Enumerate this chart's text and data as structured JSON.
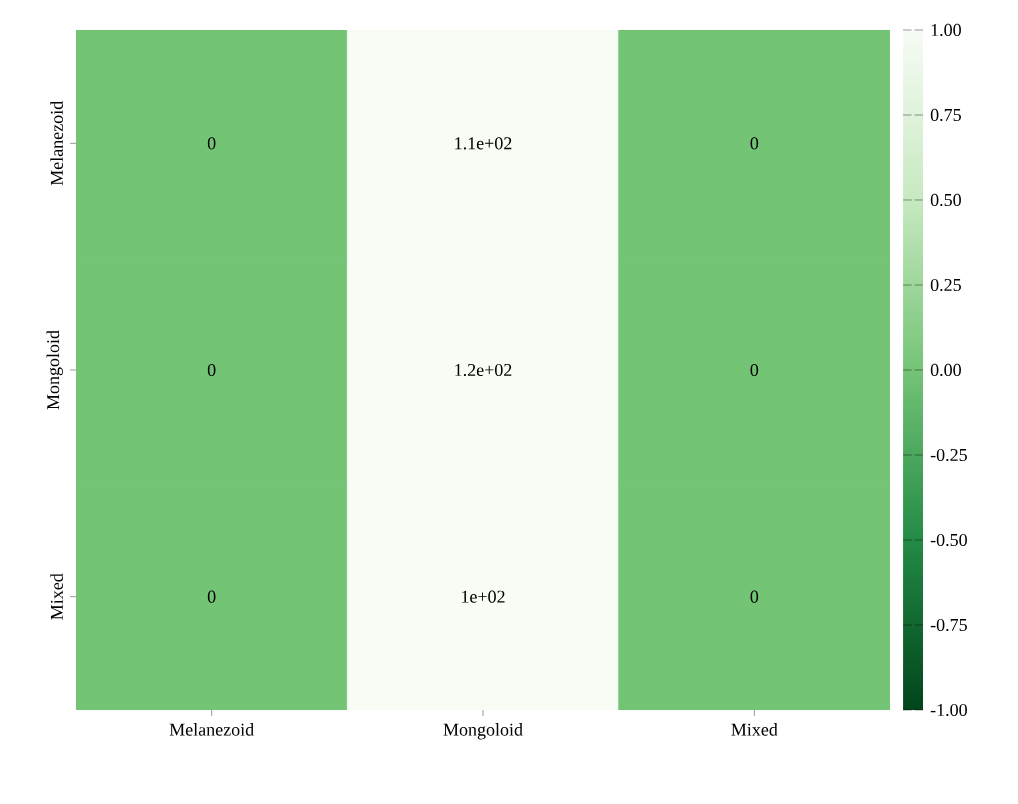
{
  "chart_data": {
    "type": "heatmap",
    "categories": [
      "Melanezoid",
      "Mongoloid",
      "Mixed"
    ],
    "y_categories": [
      "Melanezoid",
      "Mongoloid",
      "Mixed"
    ],
    "cells": [
      [
        0,
        110,
        0
      ],
      [
        0,
        120,
        0
      ],
      [
        0,
        100,
        0
      ]
    ],
    "cell_labels": [
      [
        "0",
        "1.1e+02",
        "0"
      ],
      [
        "0",
        "1.2e+02",
        "0"
      ],
      [
        "0",
        "1e+02",
        "0"
      ]
    ],
    "clim": [
      -1,
      1
    ],
    "cticks": [
      {
        "value": 1,
        "label": "1.00"
      },
      {
        "value": 0.75,
        "label": "0.75"
      },
      {
        "value": 0.5,
        "label": "0.50"
      },
      {
        "value": 0.25,
        "label": "0.25"
      },
      {
        "value": 0,
        "label": "0.00"
      },
      {
        "value": -0.25,
        "label": "-0.25"
      },
      {
        "value": -0.5,
        "label": "-0.50"
      },
      {
        "value": -0.75,
        "label": "-0.75"
      },
      {
        "value": -1,
        "label": "-1.00"
      }
    ]
  }
}
